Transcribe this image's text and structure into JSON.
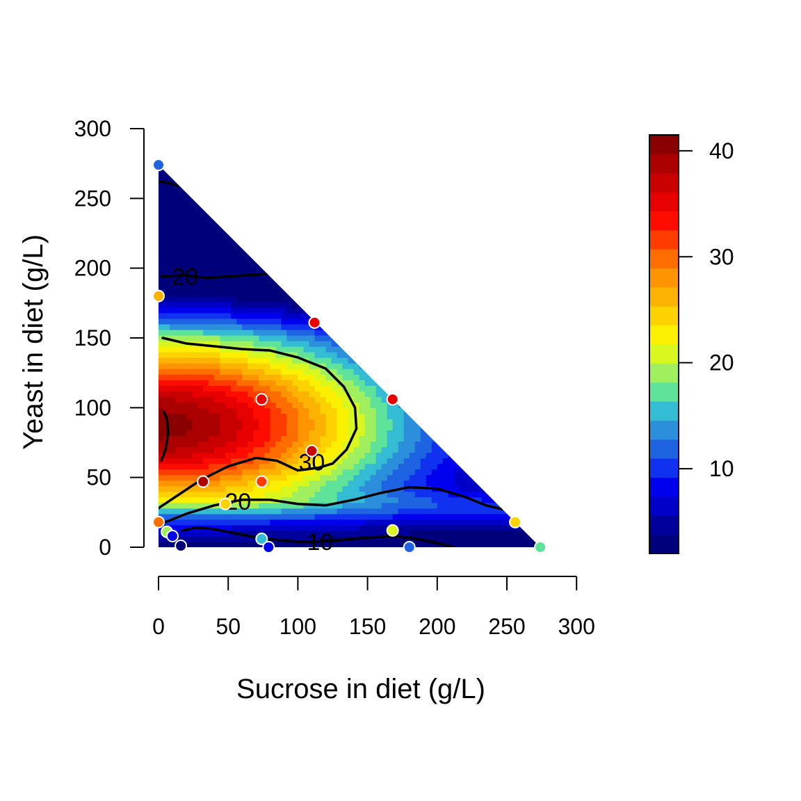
{
  "chart_data": {
    "type": "heatmap",
    "subtype": "filled-contour-with-scatter",
    "xlabel": "Sucrose in diet (g/L)",
    "ylabel": "Yeast in diet (g/L)",
    "xlim": [
      0,
      300
    ],
    "ylim": [
      0,
      300
    ],
    "x_ticks": [
      "0",
      "50",
      "100",
      "150",
      "200",
      "250",
      "300"
    ],
    "y_ticks": [
      "0",
      "50",
      "100",
      "150",
      "200",
      "250",
      "300"
    ],
    "domain_constraint": "x + y <= 274",
    "colorbar": {
      "range": [
        2,
        41.5
      ],
      "tick_labels": [
        "10",
        "20",
        "30",
        "40"
      ],
      "tick_values": [
        10,
        20,
        30,
        40
      ],
      "colors": [
        "#00007a",
        "#00009b",
        "#0000c8",
        "#0000ee",
        "#1032f0",
        "#1e64e2",
        "#2b8fdb",
        "#33bcd3",
        "#5fe39a",
        "#9fef5f",
        "#d8f71f",
        "#fbf000",
        "#fcd200",
        "#fcb200",
        "#fe9400",
        "#fe6d00",
        "#ff3c00",
        "#ff0c00",
        "#e60000",
        "#c80000",
        "#aa0000",
        "#880000"
      ]
    },
    "contours": [
      {
        "level": 10,
        "label": "10",
        "points": [
          [
            17,
            12
          ],
          [
            27,
            14
          ],
          [
            40,
            13
          ],
          [
            55,
            10
          ],
          [
            75,
            6
          ],
          [
            100,
            4
          ],
          [
            110,
            4
          ],
          [
            130,
            5
          ],
          [
            150,
            7
          ],
          [
            170,
            8
          ],
          [
            185,
            6
          ],
          [
            200,
            3
          ],
          [
            212,
            0
          ]
        ]
      },
      {
        "level": 20,
        "label": "20",
        "points": [
          [
            5,
            18
          ],
          [
            20,
            24
          ],
          [
            40,
            30
          ],
          [
            60,
            34
          ],
          [
            80,
            34
          ],
          [
            100,
            31
          ],
          [
            120,
            30
          ],
          [
            140,
            34
          ],
          [
            160,
            39
          ],
          [
            180,
            43
          ],
          [
            200,
            42
          ],
          [
            220,
            36
          ],
          [
            235,
            30
          ],
          [
            248,
            27
          ]
        ]
      },
      {
        "level": 20,
        "label": "20",
        "points": [
          [
            2,
            194
          ],
          [
            18,
            195
          ],
          [
            35,
            193
          ],
          [
            50,
            194
          ],
          [
            65,
            195
          ],
          [
            80,
            196
          ],
          [
            83,
            197
          ]
        ]
      },
      {
        "level": 30,
        "label": "30",
        "points": [
          [
            0,
            28
          ],
          [
            15,
            38
          ],
          [
            30,
            48
          ],
          [
            50,
            58
          ],
          [
            70,
            64
          ],
          [
            85,
            62
          ],
          [
            100,
            55
          ],
          [
            115,
            57
          ],
          [
            125,
            60
          ],
          [
            135,
            70
          ],
          [
            142,
            85
          ],
          [
            141,
            100
          ],
          [
            133,
            115
          ],
          [
            120,
            128
          ],
          [
            100,
            136
          ],
          [
            80,
            141
          ],
          [
            60,
            142
          ],
          [
            40,
            144
          ],
          [
            20,
            146
          ],
          [
            3,
            150
          ]
        ]
      },
      {
        "level": 40,
        "label": "",
        "points": [
          [
            2,
            62
          ],
          [
            5,
            70
          ],
          [
            7,
            82
          ],
          [
            6,
            92
          ],
          [
            4,
            97
          ]
        ]
      },
      {
        "level": 10,
        "label": "",
        "points": [
          [
            0,
            262
          ],
          [
            8,
            261
          ],
          [
            14,
            259
          ]
        ]
      }
    ],
    "contour_label_positions": [
      {
        "label": "10",
        "x": 116,
        "y": 4
      },
      {
        "label": "20",
        "x": 57,
        "y": 33
      },
      {
        "label": "20",
        "x": 19,
        "y": 194
      },
      {
        "label": "30",
        "x": 110,
        "y": 61
      }
    ],
    "points": [
      {
        "x": 0,
        "y": 274,
        "z": 12
      },
      {
        "x": 0,
        "y": 180,
        "z": 27
      },
      {
        "x": 0,
        "y": 18,
        "z": 29
      },
      {
        "x": 112,
        "y": 161,
        "z": 35
      },
      {
        "x": 168,
        "y": 106,
        "z": 36
      },
      {
        "x": 74,
        "y": 106,
        "z": 36
      },
      {
        "x": 110,
        "y": 69,
        "z": 37
      },
      {
        "x": 32,
        "y": 47,
        "z": 38
      },
      {
        "x": 74,
        "y": 47,
        "z": 31
      },
      {
        "x": 48,
        "y": 31,
        "z": 25
      },
      {
        "x": 6,
        "y": 11,
        "z": 19
      },
      {
        "x": 10,
        "y": 8,
        "z": 8
      },
      {
        "x": 16,
        "y": 1,
        "z": 3
      },
      {
        "x": 74,
        "y": 6,
        "z": 15
      },
      {
        "x": 79,
        "y": 0,
        "z": 8
      },
      {
        "x": 168,
        "y": 12,
        "z": 21
      },
      {
        "x": 180,
        "y": 0,
        "z": 12
      },
      {
        "x": 256,
        "y": 18,
        "z": 24
      },
      {
        "x": 274,
        "y": 0,
        "z": 18
      }
    ]
  }
}
